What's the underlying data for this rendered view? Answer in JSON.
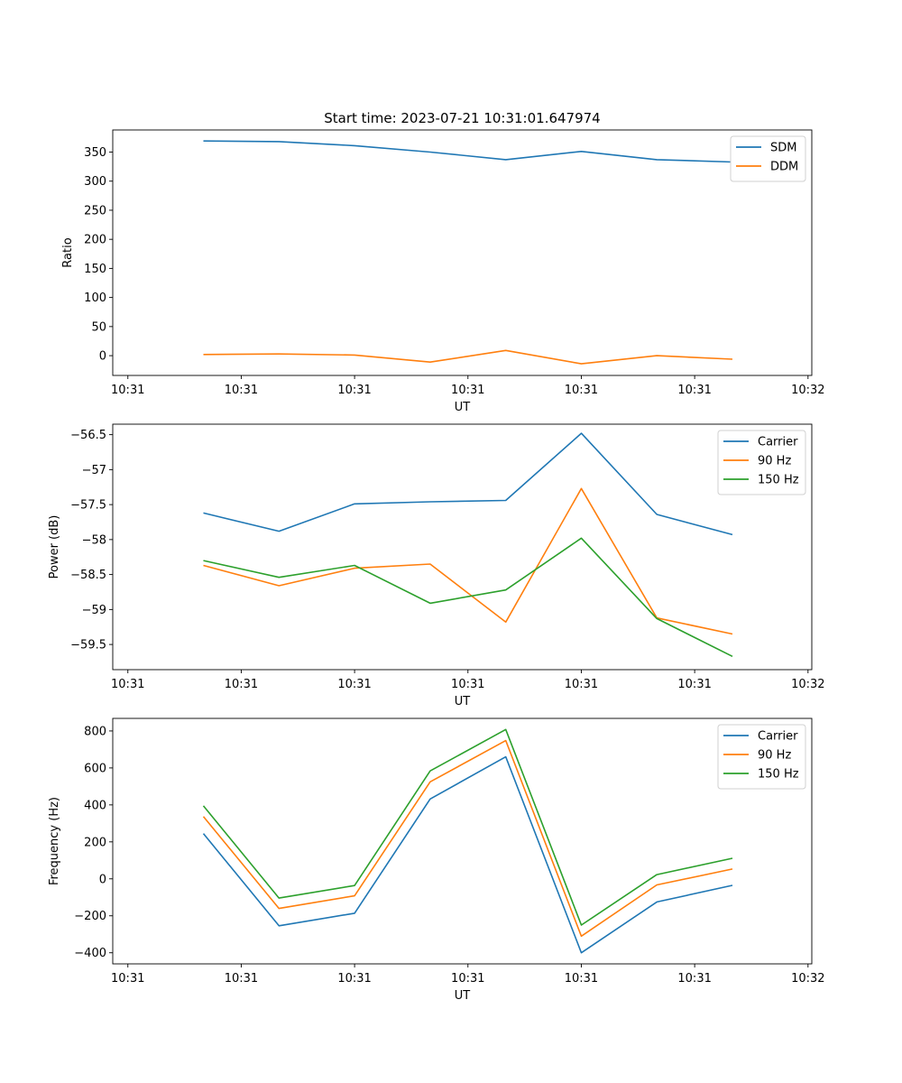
{
  "chart_data": [
    {
      "type": "line",
      "title": "Start time: 2023-07-21 10:31:01.647974",
      "xlabel": "UT",
      "ylabel": "Ratio",
      "x_tick_labels": [
        "10:31",
        "10:31",
        "10:31",
        "10:31",
        "10:31",
        "10:31",
        "10:32"
      ],
      "ylim": [
        -34,
        388
      ],
      "yticks": [
        0,
        50,
        100,
        150,
        200,
        250,
        300,
        350
      ],
      "x": [
        1,
        2,
        3,
        4,
        5,
        6,
        7,
        8
      ],
      "xlim": [
        -0.2,
        9.05
      ],
      "legend": "top-right",
      "series": [
        {
          "name": "SDM",
          "color": "#1f77b4",
          "values": [
            369,
            368,
            361,
            350,
            337,
            351,
            337,
            333
          ]
        },
        {
          "name": "DDM",
          "color": "#ff7f0e",
          "values": [
            2,
            3,
            1,
            -11,
            9,
            -14,
            0,
            -6
          ]
        }
      ]
    },
    {
      "type": "line",
      "title": "",
      "xlabel": "UT",
      "ylabel": "Power (dB)",
      "x_tick_labels": [
        "10:31",
        "10:31",
        "10:31",
        "10:31",
        "10:31",
        "10:31",
        "10:32"
      ],
      "ylim": [
        -59.86,
        -56.35
      ],
      "yticks": [
        -59.5,
        -59.0,
        -58.5,
        -58.0,
        -57.5,
        -57.0,
        -56.5
      ],
      "x": [
        1,
        2,
        3,
        4,
        5,
        6,
        7,
        8
      ],
      "xlim": [
        -0.2,
        9.05
      ],
      "legend": "top-right",
      "series": [
        {
          "name": "Carrier",
          "color": "#1f77b4",
          "values": [
            -57.62,
            -57.88,
            -57.49,
            -57.46,
            -57.44,
            -56.48,
            -57.64,
            -57.93
          ]
        },
        {
          "name": "90 Hz",
          "color": "#ff7f0e",
          "values": [
            -58.37,
            -58.66,
            -58.41,
            -58.35,
            -59.18,
            -57.27,
            -59.12,
            -59.35
          ]
        },
        {
          "name": "150 Hz",
          "color": "#2ca02c",
          "values": [
            -58.3,
            -58.54,
            -58.37,
            -58.91,
            -58.72,
            -57.98,
            -59.13,
            -59.67
          ]
        }
      ]
    },
    {
      "type": "line",
      "title": "",
      "xlabel": "UT",
      "ylabel": "Frequency (Hz)",
      "x_tick_labels": [
        "10:31",
        "10:31",
        "10:31",
        "10:31",
        "10:31",
        "10:31",
        "10:32"
      ],
      "ylim": [
        -460,
        868
      ],
      "yticks": [
        -400,
        -200,
        0,
        200,
        400,
        600,
        800
      ],
      "x": [
        1,
        2,
        3,
        4,
        5,
        6,
        7,
        8
      ],
      "xlim": [
        -0.2,
        9.05
      ],
      "legend": "top-right",
      "series": [
        {
          "name": "Carrier",
          "color": "#1f77b4",
          "values": [
            245,
            -254,
            -186,
            432,
            660,
            -400,
            -125,
            -35
          ]
        },
        {
          "name": "90 Hz",
          "color": "#ff7f0e",
          "values": [
            337,
            -160,
            -92,
            525,
            748,
            -310,
            -33,
            53
          ]
        },
        {
          "name": "150 Hz",
          "color": "#2ca02c",
          "values": [
            395,
            -104,
            -36,
            584,
            808,
            -250,
            23,
            111
          ]
        }
      ]
    }
  ]
}
